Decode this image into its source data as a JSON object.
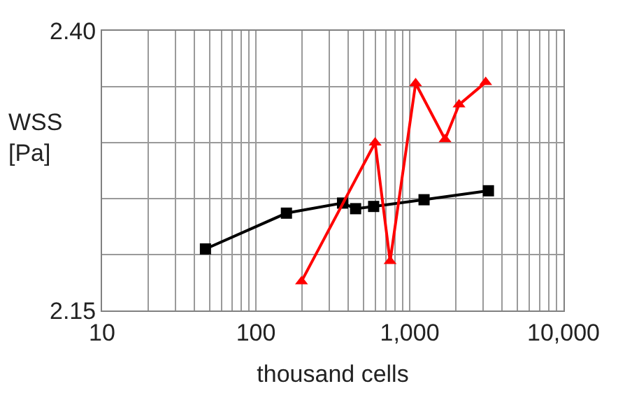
{
  "chart_data": {
    "type": "line",
    "xlabel": "thousand cells",
    "ylabel": "WSS\n[Pa]",
    "log": "x",
    "grid": true,
    "line_style": "solid",
    "xlim": [
      10,
      10000
    ],
    "ylim": [
      2.15,
      2.4
    ],
    "xticks": [
      {
        "value": 10,
        "label": "10"
      },
      {
        "value": 20,
        "label": null
      },
      {
        "value": 30,
        "label": null
      },
      {
        "value": 40,
        "label": null
      },
      {
        "value": 50,
        "label": null
      },
      {
        "value": 60,
        "label": null
      },
      {
        "value": 70,
        "label": null
      },
      {
        "value": 80,
        "label": null
      },
      {
        "value": 90,
        "label": null
      },
      {
        "value": 100,
        "label": "100"
      },
      {
        "value": 200,
        "label": null
      },
      {
        "value": 300,
        "label": null
      },
      {
        "value": 400,
        "label": null
      },
      {
        "value": 500,
        "label": null
      },
      {
        "value": 600,
        "label": null
      },
      {
        "value": 700,
        "label": null
      },
      {
        "value": 800,
        "label": null
      },
      {
        "value": 900,
        "label": null
      },
      {
        "value": 1000,
        "label": "1,000"
      },
      {
        "value": 2000,
        "label": null
      },
      {
        "value": 3000,
        "label": null
      },
      {
        "value": 4000,
        "label": null
      },
      {
        "value": 5000,
        "label": null
      },
      {
        "value": 6000,
        "label": null
      },
      {
        "value": 7000,
        "label": null
      },
      {
        "value": 8000,
        "label": null
      },
      {
        "value": 9000,
        "label": null
      },
      {
        "value": 10000,
        "label": "10,000"
      }
    ],
    "yticks": [
      2.15,
      {
        "value": 2.2,
        "label": null
      },
      {
        "value": 2.25,
        "label": null
      },
      {
        "value": 2.3,
        "label": null
      },
      {
        "value": 2.35,
        "label": null
      },
      {
        "value": 2.4,
        "label": "2.40"
      }
    ],
    "series": [
      {
        "color": "#000000",
        "marker": "square",
        "x": [
          47,
          158,
          366,
          445,
          583,
          1240,
          3250
        ],
        "values": [
          2.205,
          2.237,
          2.246,
          2.241,
          2.243,
          2.249,
          2.257
        ]
      },
      {
        "color": "#ff0000",
        "marker": "triangle",
        "x": [
          198,
          596,
          746,
          1093,
          1698,
          2094,
          3120
        ],
        "values": [
          2.176,
          2.3,
          2.194,
          2.353,
          2.303,
          2.334,
          2.354
        ]
      }
    ]
  }
}
